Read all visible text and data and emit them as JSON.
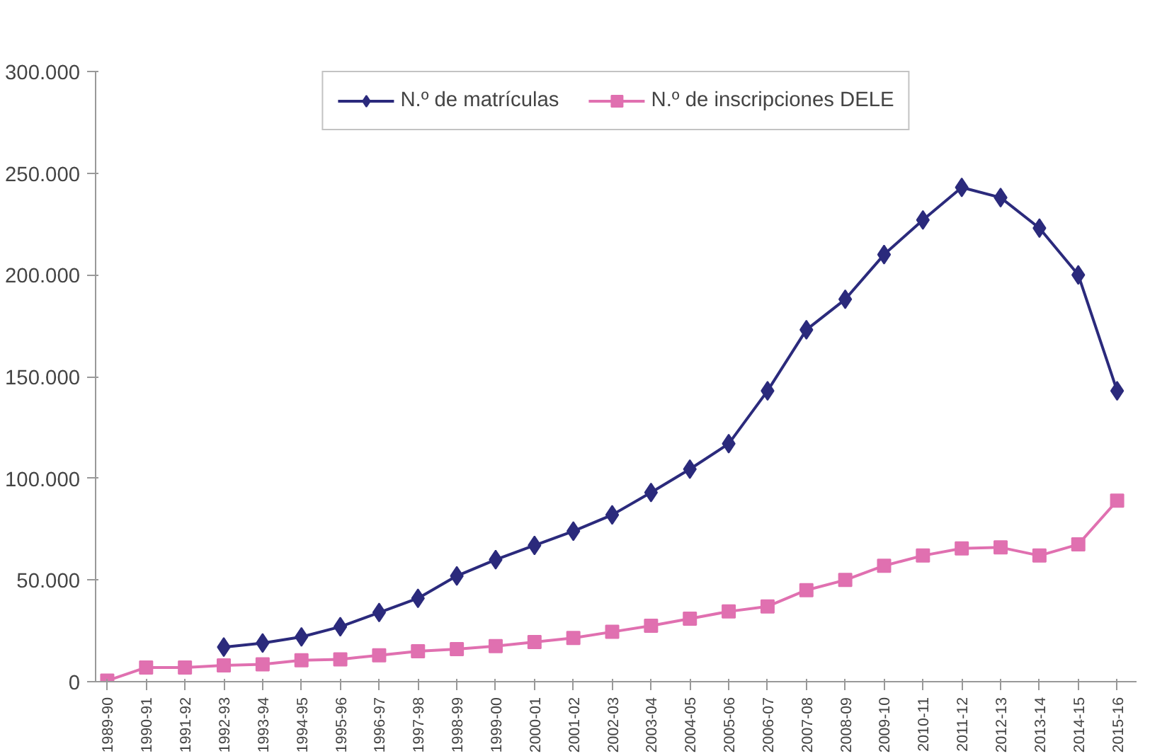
{
  "chart_data": {
    "type": "line",
    "categories": [
      "1989-90",
      "1990-91",
      "1991-92",
      "1992-93",
      "1993-94",
      "1994-95",
      "1995-96",
      "1996-97",
      "1997-98",
      "1998-99",
      "1999-00",
      "2000-01",
      "2001-02",
      "2002-03",
      "2003-04",
      "2004-05",
      "2005-06",
      "2006-07",
      "2007-08",
      "2008-09",
      "2009-10",
      "2010-11",
      "2011-12",
      "2012-13",
      "2013-14",
      "2014-15",
      "2015-16"
    ],
    "series": [
      {
        "name": "N.º de matrículas",
        "color": "#2b2a7c",
        "marker": "diamond",
        "values": [
          null,
          null,
          null,
          17000,
          19000,
          22000,
          27000,
          34000,
          41000,
          52000,
          60000,
          67000,
          74000,
          82000,
          93000,
          104500,
          117000,
          143000,
          173000,
          188000,
          210000,
          227000,
          243000,
          238000,
          223000,
          200000,
          143000
        ]
      },
      {
        "name": "N.º de inscripciones DELE",
        "color": "#e070b0",
        "marker": "square",
        "values": [
          500,
          7000,
          7000,
          8000,
          8500,
          10500,
          11000,
          13000,
          15000,
          16000,
          17500,
          19500,
          21500,
          24500,
          27500,
          31000,
          34500,
          37000,
          45000,
          50000,
          57000,
          62000,
          65500,
          66000,
          62000,
          67500,
          89000
        ]
      }
    ],
    "ylim": [
      0,
      300000
    ],
    "yticks": [
      {
        "value": 0,
        "label": "0"
      },
      {
        "value": 50000,
        "label": "50.000"
      },
      {
        "value": 100000,
        "label": "100.000"
      },
      {
        "value": 150000,
        "label": "150.000"
      },
      {
        "value": 200000,
        "label": "200.000"
      },
      {
        "value": 250000,
        "label": "250.000"
      },
      {
        "value": 300000,
        "label": "300.000"
      }
    ],
    "grid": false,
    "legend": "top",
    "line_style": "solid"
  }
}
